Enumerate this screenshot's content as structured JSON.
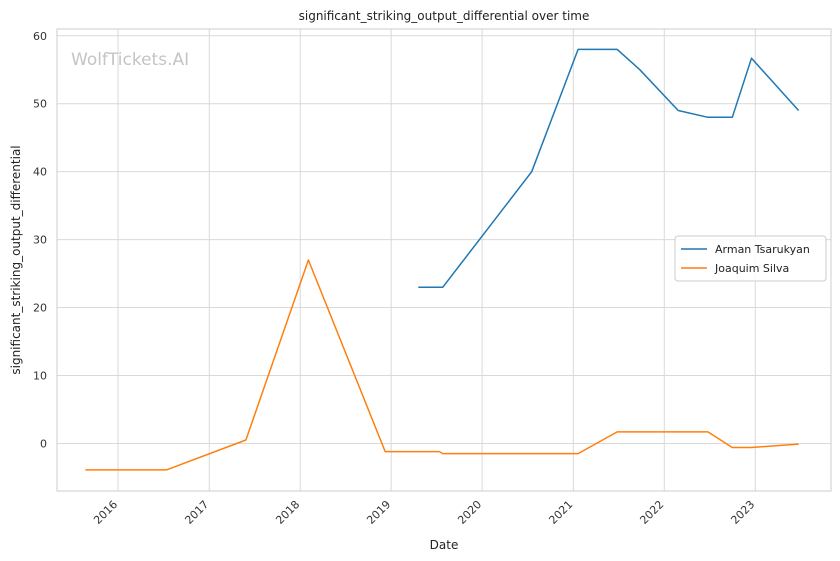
{
  "watermark": "WolfTickets.AI",
  "chart_data": {
    "type": "line",
    "title": "significant_striking_output_differential over time",
    "xlabel": "Date",
    "ylabel": "significant_striking_output_differential",
    "xlim": [
      "2015-05-01",
      "2023-11-01"
    ],
    "ylim": [
      -7,
      61
    ],
    "x_ticks": [
      "2016",
      "2017",
      "2018",
      "2019",
      "2020",
      "2021",
      "2022",
      "2023"
    ],
    "y_ticks": [
      0,
      10,
      20,
      30,
      40,
      50,
      60
    ],
    "grid": true,
    "legend_position": "center-right",
    "series": [
      {
        "name": "Arman Tsarukyan",
        "color": "#1f77b4",
        "points": [
          {
            "x": "2019-04-20",
            "y": 23
          },
          {
            "x": "2019-07-27",
            "y": 23
          },
          {
            "x": "2020-07-18",
            "y": 40
          },
          {
            "x": "2021-01-20",
            "y": 58
          },
          {
            "x": "2021-06-26",
            "y": 58
          },
          {
            "x": "2021-09-25",
            "y": 55
          },
          {
            "x": "2022-02-26",
            "y": 49
          },
          {
            "x": "2022-06-25",
            "y": 48
          },
          {
            "x": "2022-10-01",
            "y": 48
          },
          {
            "x": "2022-12-17",
            "y": 56.7
          },
          {
            "x": "2023-06-24",
            "y": 49
          }
        ]
      },
      {
        "name": "Joaquim Silva",
        "color": "#ff7f0e",
        "points": [
          {
            "x": "2015-08-23",
            "y": -3.9
          },
          {
            "x": "2016-07-13",
            "y": -3.9
          },
          {
            "x": "2017-05-28",
            "y": 0.5
          },
          {
            "x": "2018-02-03",
            "y": 27
          },
          {
            "x": "2018-12-08",
            "y": -1.2
          },
          {
            "x": "2019-07-13",
            "y": -1.2
          },
          {
            "x": "2019-07-27",
            "y": -1.5
          },
          {
            "x": "2021-01-20",
            "y": -1.5
          },
          {
            "x": "2021-06-26",
            "y": 1.7
          },
          {
            "x": "2022-06-25",
            "y": 1.7
          },
          {
            "x": "2022-10-01",
            "y": -0.6
          },
          {
            "x": "2022-12-17",
            "y": -0.6
          },
          {
            "x": "2023-06-24",
            "y": -0.1
          }
        ]
      }
    ]
  }
}
